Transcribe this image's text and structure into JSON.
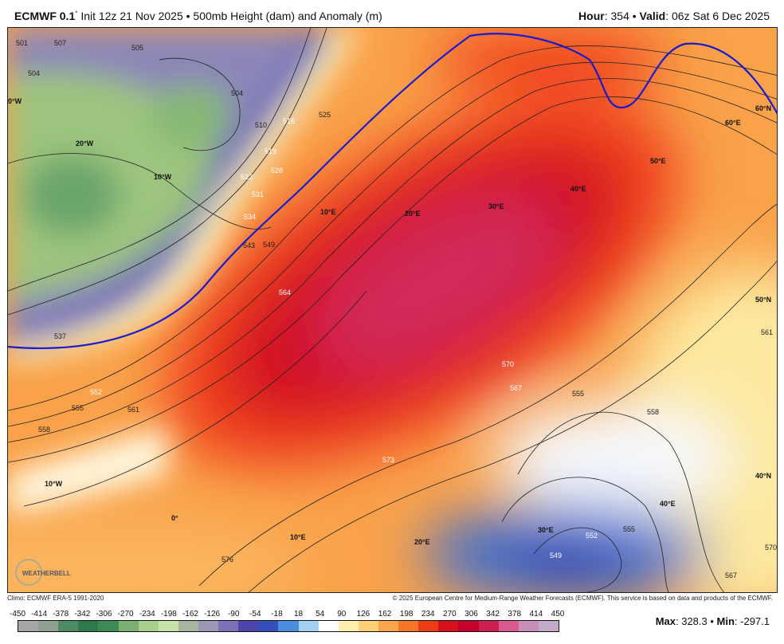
{
  "header": {
    "model": "ECMWF 0.1",
    "degree": "°",
    "init": " Init 12z 21 Nov 2025 • 500mb Height (dam) and Anomaly (m)",
    "hour_label": "Hour",
    "hour": ": 354 • ",
    "valid_label": "Valid",
    "valid": ": 06z Sat 6 Dec 2025"
  },
  "map": {
    "highlight_contour_color": "#1a1ad0",
    "contour_labels": [
      "501",
      "507",
      "504",
      "504",
      "505",
      "510",
      "516",
      "519",
      "525",
      "522",
      "528",
      "531",
      "534",
      "543",
      "549",
      "537",
      "552",
      "555",
      "558",
      "561",
      "564",
      "570",
      "567",
      "573",
      "576",
      "555",
      "558",
      "561",
      "552",
      "555",
      "549",
      "567",
      "570"
    ],
    "graticule_labels": [
      "0°W",
      "20°W",
      "10°W",
      "10°E",
      "20°E",
      "30°E",
      "40°E",
      "50°E",
      "60°E",
      "60°N",
      "50°N",
      "40°N",
      "10°W",
      "0°",
      "10°E",
      "20°E",
      "30°E",
      "40°E"
    ],
    "logo": "WEATHERBELL"
  },
  "footer": {
    "climo": "Climo: ECMWF ERA-5 1991-2020",
    "copyright": "© 2025 European Centre for Medium-Range Weather Forecasts (ECMWF). This service is based on data and products of the ECMWF."
  },
  "colorbar": {
    "ticks": [
      "-450",
      "-414",
      "-378",
      "-342",
      "-306",
      "-270",
      "-234",
      "-198",
      "-162",
      "-126",
      "-90",
      "-54",
      "-18",
      "18",
      "54",
      "90",
      "126",
      "162",
      "198",
      "234",
      "270",
      "306",
      "342",
      "378",
      "414",
      "450"
    ],
    "colors": [
      "#a6a6a6",
      "#8f9f92",
      "#4e8a66",
      "#2f7a4c",
      "#3d8a55",
      "#7ab072",
      "#a8d08a",
      "#c6e2a8",
      "#a7b5a0",
      "#9a98b4",
      "#7d70b6",
      "#4f46ac",
      "#3550bd",
      "#4a8ee0",
      "#a6d0f2",
      "#ffffff",
      "#fff0b0",
      "#fdd078",
      "#fba64c",
      "#f8762a",
      "#ee3b14",
      "#d6101c",
      "#c4002c",
      "#cc1f50",
      "#d85a8e",
      "#c890b8",
      "#c2aac8"
    ]
  },
  "stats": {
    "max_label": "Max",
    "max": ": 328.3 • ",
    "min_label": "Min",
    "min": ": -297.1"
  }
}
